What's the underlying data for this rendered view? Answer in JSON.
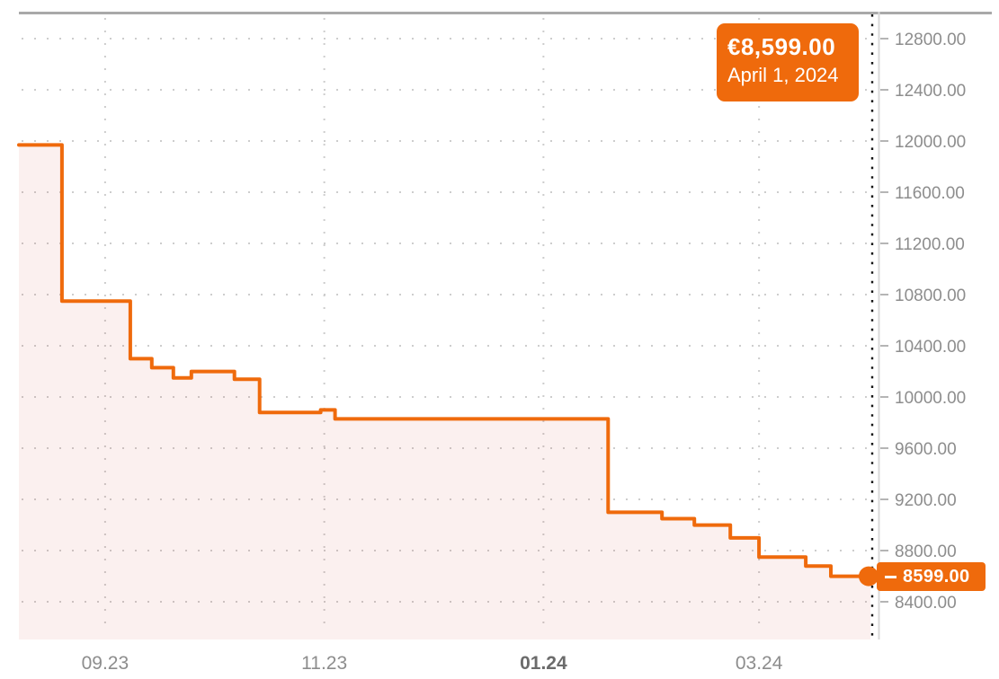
{
  "colors": {
    "accent": "#ef6a0c",
    "area_fill": "rgba(205,60,45,0.08)",
    "grid": "#cdcdcd",
    "axis_text": "#8d8d8d",
    "axis_text_bold": "#6b6b6b",
    "axis_line": "#d8d8d8",
    "tick_mark": "#b5b5b5",
    "top_border": "#a9a9a9",
    "crosshair": "#151515",
    "tooltip_text": "#ffffff"
  },
  "tooltip": {
    "price": "€8,599.00",
    "date": "April 1, 2024"
  },
  "price_flag": {
    "value": "8599.00"
  },
  "chart_data": {
    "type": "line",
    "subtype": "stepped-area-price-history",
    "title": "",
    "xlabel": "",
    "ylabel": "",
    "legend": "none",
    "grid": "dotted",
    "currency": "EUR",
    "x_range": {
      "start": "2023-08-08",
      "end": "2024-04-01"
    },
    "x_ticks": [
      {
        "label": "09.23",
        "date": "2023-09-01",
        "bold": false
      },
      {
        "label": "11.23",
        "date": "2023-11-01",
        "bold": false
      },
      {
        "label": "01.24",
        "date": "2024-01-01",
        "bold": true
      },
      {
        "label": "03.24",
        "date": "2024-03-01",
        "bold": false
      }
    ],
    "y_ticks": [
      "12800.00",
      "12400.00",
      "12000.00",
      "11600.00",
      "11200.00",
      "10800.00",
      "10400.00",
      "10000.00",
      "9600.00",
      "9200.00",
      "8800.00",
      "8400.00"
    ],
    "y_axis": {
      "max": 12800,
      "min_label": 8400,
      "tick_step": 400,
      "side": "right"
    },
    "series": [
      {
        "name": "price",
        "points": [
          {
            "date": "2023-08-08",
            "price": 11969
          },
          {
            "date": "2023-08-20",
            "price": 10749
          },
          {
            "date": "2023-09-08",
            "price": 10299
          },
          {
            "date": "2023-09-14",
            "price": 10229
          },
          {
            "date": "2023-09-20",
            "price": 10149
          },
          {
            "date": "2023-09-25",
            "price": 10199
          },
          {
            "date": "2023-10-07",
            "price": 10139
          },
          {
            "date": "2023-10-14",
            "price": 9879
          },
          {
            "date": "2023-10-31",
            "price": 9899
          },
          {
            "date": "2023-11-04",
            "price": 9829
          },
          {
            "date": "2024-01-19",
            "price": 9099
          },
          {
            "date": "2024-02-03",
            "price": 9049
          },
          {
            "date": "2024-02-12",
            "price": 8999
          },
          {
            "date": "2024-02-22",
            "price": 8899
          },
          {
            "date": "2024-03-01",
            "price": 8749
          },
          {
            "date": "2024-03-14",
            "price": 8679
          },
          {
            "date": "2024-03-21",
            "price": 8599
          },
          {
            "date": "2024-04-01",
            "price": 8599
          }
        ]
      }
    ],
    "highlight": {
      "date": "2024-04-01",
      "price": 8599,
      "crosshair": true
    }
  }
}
